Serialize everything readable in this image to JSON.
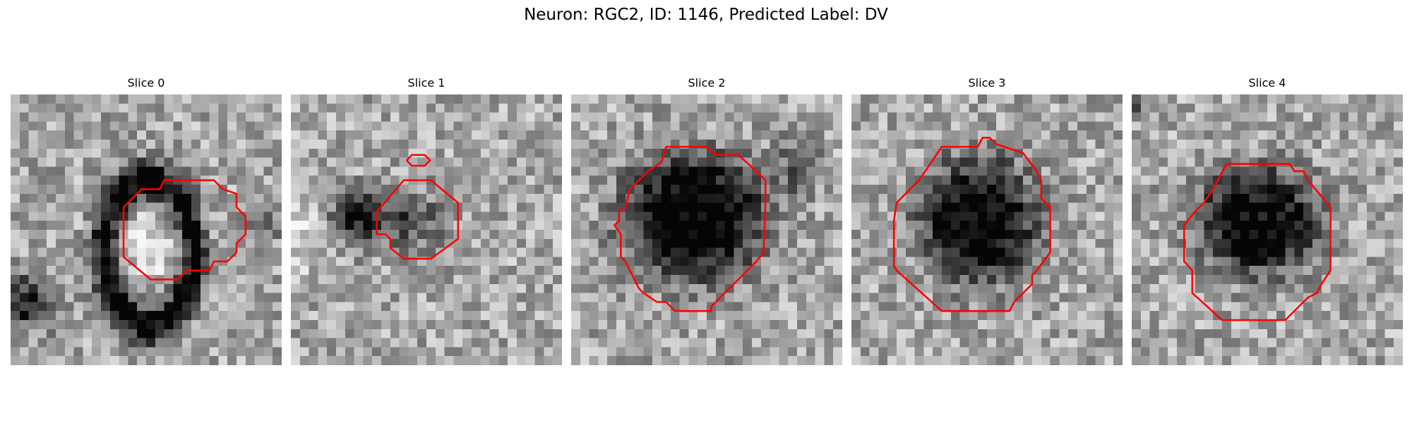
{
  "figure": {
    "title": "Neuron: RGC2, ID: 1146, Predicted Label: DV"
  },
  "panels": [
    {
      "title": "Slice 0",
      "content": "grayscale microscopy slice with dark ring-shaped cell and red contour"
    },
    {
      "title": "Slice 1",
      "content": "grayscale microscopy slice with small dark region, red contour and small red loop above"
    },
    {
      "title": "Slice 2",
      "content": "grayscale microscopy slice with large dark cell body outlined in red"
    },
    {
      "title": "Slice 3",
      "content": "grayscale microscopy slice with dark cell body outlined in red"
    },
    {
      "title": "Slice 4",
      "content": "grayscale microscopy slice with dark cell body outlined in red"
    }
  ],
  "colors": {
    "contour": "#ff0000",
    "background": "#ffffff"
  }
}
